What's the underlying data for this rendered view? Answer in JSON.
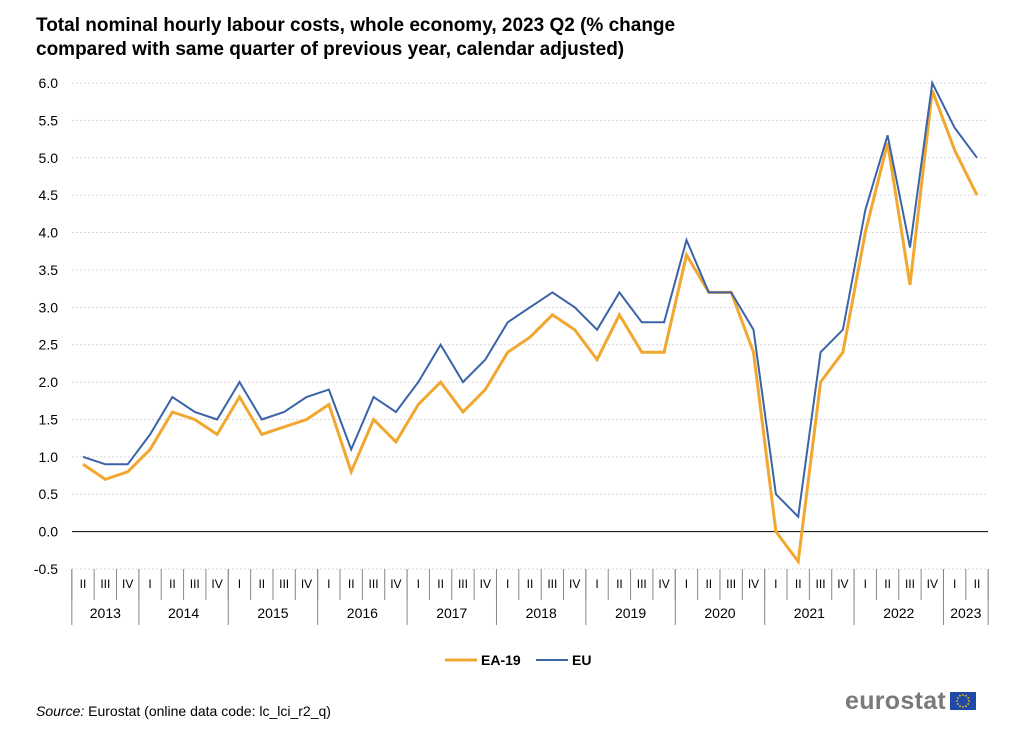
{
  "chart_data": {
    "type": "line",
    "title_lines": [
      "Total nominal hourly labour costs, whole economy, 2023 Q2 (% change",
      "compared with same quarter of previous year, calendar adjusted)"
    ],
    "y_ticks": [
      "6.0",
      "5.5",
      "5.0",
      "4.5",
      "4.0",
      "3.5",
      "3.0",
      "2.5",
      "2.0",
      "1.5",
      "1.0",
      "0.5",
      "0.0",
      "-0.5"
    ],
    "ylim": [
      -0.5,
      6.0
    ],
    "grid": true,
    "legend_position": "bottom-center",
    "quarter_labels": [
      "II",
      "III",
      "IV",
      "I",
      "II",
      "III",
      "IV",
      "I",
      "II",
      "III",
      "IV",
      "I",
      "II",
      "III",
      "IV",
      "I",
      "II",
      "III",
      "IV",
      "I",
      "II",
      "III",
      "IV",
      "I",
      "II",
      "III",
      "IV",
      "I",
      "II",
      "III",
      "IV",
      "I",
      "II",
      "III",
      "IV",
      "I",
      "II",
      "III",
      "IV",
      "I",
      "II"
    ],
    "years": [
      {
        "label": "2013",
        "count": 3
      },
      {
        "label": "2014",
        "count": 4
      },
      {
        "label": "2015",
        "count": 4
      },
      {
        "label": "2016",
        "count": 4
      },
      {
        "label": "2017",
        "count": 4
      },
      {
        "label": "2018",
        "count": 4
      },
      {
        "label": "2019",
        "count": 4
      },
      {
        "label": "2020",
        "count": 4
      },
      {
        "label": "2021",
        "count": 4
      },
      {
        "label": "2022",
        "count": 4
      },
      {
        "label": "2023",
        "count": 2
      }
    ],
    "series": [
      {
        "name": "EA-19",
        "color": "#f0a830",
        "values": [
          0.9,
          0.7,
          0.8,
          1.1,
          1.6,
          1.5,
          1.3,
          1.8,
          1.3,
          1.4,
          1.5,
          1.7,
          0.8,
          1.5,
          1.2,
          1.7,
          2.0,
          1.6,
          1.9,
          2.4,
          2.6,
          2.9,
          2.7,
          2.3,
          2.9,
          2.4,
          2.4,
          3.7,
          3.2,
          3.2,
          2.4,
          0.0,
          -0.4,
          2.0,
          2.4,
          4.0,
          5.2,
          3.3,
          5.9,
          5.1,
          4.5
        ]
      },
      {
        "name": "EU",
        "color": "#3b63a8",
        "values": [
          1.0,
          0.9,
          0.9,
          1.3,
          1.8,
          1.6,
          1.5,
          2.0,
          1.5,
          1.6,
          1.8,
          1.9,
          1.1,
          1.8,
          1.6,
          2.0,
          2.5,
          2.0,
          2.3,
          2.8,
          3.0,
          3.2,
          3.0,
          2.7,
          3.2,
          2.8,
          2.8,
          3.9,
          3.2,
          3.2,
          2.7,
          0.5,
          0.2,
          2.4,
          2.7,
          4.3,
          5.3,
          3.8,
          6.0,
          5.4,
          5.0
        ]
      }
    ]
  },
  "source": {
    "prefix": "Source:",
    "text": " Eurostat (online data code: lc_lci_r2_q)"
  },
  "logo": {
    "word": "eurostat"
  }
}
